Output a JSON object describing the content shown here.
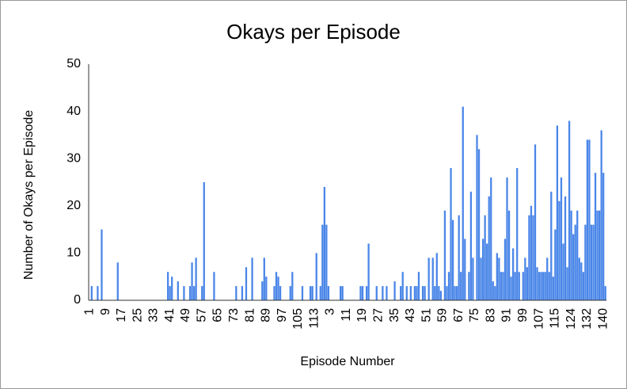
{
  "chart_data": {
    "type": "bar",
    "title": "Okays per Episode",
    "x_label": "Episode Number",
    "y_label": "Number of Okays per Episode",
    "color": "#4a86e8",
    "grid": false,
    "categories": [
      "1",
      null,
      null,
      null,
      null,
      null,
      null,
      null,
      "9",
      null,
      null,
      null,
      null,
      null,
      null,
      null,
      "17",
      null,
      null,
      null,
      null,
      null,
      null,
      null,
      "25",
      null,
      null,
      null,
      null,
      null,
      null,
      null,
      "33",
      null,
      null,
      null,
      null,
      null,
      null,
      null,
      "41",
      null,
      null,
      null,
      null,
      null,
      null,
      null,
      "49",
      null,
      null,
      null,
      null,
      null,
      null,
      null,
      "57",
      null,
      null,
      null,
      null,
      null,
      null,
      null,
      "65",
      null,
      null,
      null,
      null,
      null,
      null,
      null,
      "73",
      null,
      null,
      null,
      null,
      null,
      null,
      null,
      "81",
      null,
      null,
      null,
      null,
      null,
      null,
      null,
      "89",
      null,
      null,
      null,
      null,
      null,
      null,
      null,
      "97",
      null,
      null,
      null,
      null,
      null,
      null,
      null,
      "105",
      null,
      null,
      null,
      null,
      null,
      null,
      null,
      "113",
      null,
      null,
      null,
      null,
      null,
      null,
      null,
      "3",
      null,
      null,
      null,
      null,
      null,
      null,
      null,
      "11",
      null,
      null,
      null,
      null,
      null,
      null,
      null,
      "19",
      null,
      null,
      null,
      null,
      null,
      null,
      null,
      "27",
      null,
      null,
      null,
      null,
      null,
      null,
      null,
      "35",
      null,
      null,
      null,
      null,
      null,
      null,
      null,
      "43",
      null,
      null,
      null,
      null,
      null,
      null,
      null,
      "51",
      null,
      null,
      null,
      null,
      null,
      null,
      null,
      "59",
      null,
      null,
      null,
      null,
      null,
      null,
      null,
      "67",
      null,
      null,
      null,
      null,
      null,
      null,
      null,
      "75",
      null,
      null,
      null,
      null,
      null,
      null,
      null,
      "83",
      null,
      null,
      null,
      null,
      null,
      null,
      null,
      "91",
      null,
      null,
      null,
      null,
      null,
      null,
      null,
      "99",
      null,
      null,
      null,
      null,
      null,
      null,
      null,
      "107",
      null,
      null,
      null,
      null,
      null,
      null,
      null,
      "115",
      null,
      null,
      null,
      null,
      null,
      null,
      null,
      "124",
      null,
      null,
      null,
      null,
      null,
      null,
      null,
      "132",
      null,
      null,
      null,
      null,
      null,
      null,
      null,
      "140",
      null
    ],
    "values": [
      0,
      3,
      0,
      0,
      3,
      0,
      15,
      0,
      0,
      0,
      0,
      0,
      0,
      0,
      8,
      0,
      0,
      0,
      0,
      0,
      0,
      0,
      0,
      0,
      0,
      0,
      0,
      0,
      0,
      0,
      0,
      0,
      0,
      0,
      0,
      0,
      0,
      0,
      0,
      6,
      3,
      5,
      0,
      0,
      4,
      0,
      0,
      3,
      0,
      0,
      3,
      8,
      3,
      9,
      0,
      0,
      3,
      25,
      0,
      0,
      0,
      0,
      6,
      0,
      0,
      0,
      0,
      0,
      0,
      0,
      0,
      0,
      0,
      3,
      0,
      0,
      3,
      0,
      7,
      0,
      0,
      9,
      0,
      0,
      0,
      0,
      4,
      9,
      5,
      0,
      0,
      0,
      3,
      6,
      5,
      3,
      0,
      0,
      0,
      0,
      3,
      6,
      0,
      0,
      0,
      0,
      3,
      0,
      0,
      0,
      3,
      3,
      0,
      10,
      0,
      3,
      16,
      24,
      16,
      3,
      0,
      0,
      0,
      0,
      0,
      3,
      3,
      0,
      0,
      0,
      0,
      0,
      0,
      0,
      0,
      3,
      3,
      0,
      3,
      12,
      0,
      0,
      0,
      3,
      0,
      0,
      3,
      0,
      3,
      0,
      0,
      0,
      4,
      0,
      0,
      3,
      6,
      0,
      3,
      0,
      3,
      0,
      3,
      3,
      6,
      0,
      3,
      3,
      0,
      9,
      0,
      9,
      3,
      10,
      3,
      2,
      0,
      19,
      3,
      6,
      28,
      17,
      3,
      3,
      18,
      6,
      41,
      13,
      0,
      6,
      23,
      9,
      0,
      35,
      32,
      9,
      13,
      18,
      12,
      22,
      26,
      4,
      3,
      10,
      9,
      6,
      6,
      13,
      26,
      19,
      5,
      11,
      6,
      28,
      6,
      0,
      6,
      9,
      7,
      18,
      20,
      18,
      33,
      7,
      6,
      6,
      6,
      6,
      9,
      6,
      23,
      5,
      15,
      37,
      21,
      26,
      12,
      22,
      7,
      38,
      19,
      14,
      16,
      19,
      9,
      8,
      6,
      16,
      34,
      34,
      16,
      16,
      27,
      19,
      19,
      36,
      27,
      3
    ],
    "ylim": [
      0,
      50
    ],
    "yticks": [
      0,
      10,
      20,
      30,
      40,
      50
    ]
  }
}
